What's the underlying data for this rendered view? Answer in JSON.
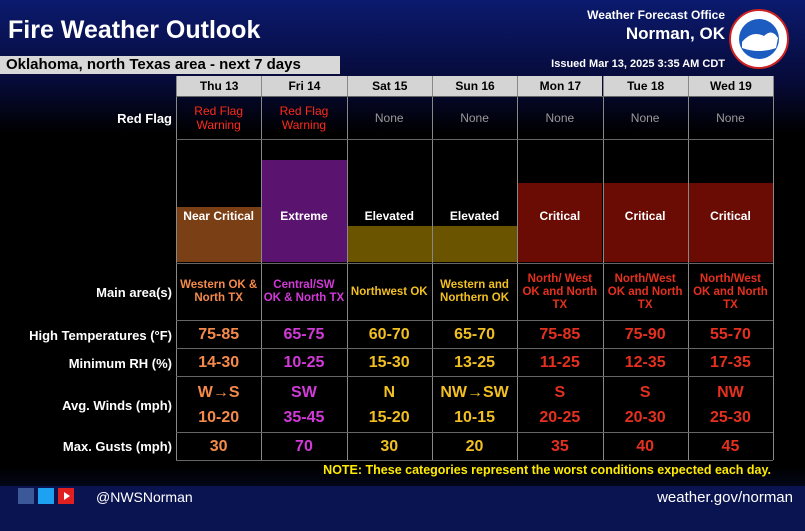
{
  "header": {
    "title": "Fire Weather Outlook",
    "subtitle": "Oklahoma, north Texas area - next 7 days",
    "office": "Weather Forecast Office",
    "office_location": "Norman, OK",
    "issued": "Issued Mar 13, 2025 3:35 AM CDT"
  },
  "table": {
    "row_labels": {
      "red_flag": "Red Flag",
      "main_area": "Main area(s)",
      "high_temps": "High Temperatures (°F)",
      "min_rh": "Minimum RH (%)",
      "winds": "Avg. Winds (mph)",
      "gusts": "Max. Gusts (mph)"
    },
    "days": [
      {
        "day": "Thu 13",
        "red_flag": "Red Flag Warning",
        "category": "Near Critical",
        "main_area": "Western OK & North TX",
        "high_temps": "75-85",
        "min_rh": "14-30",
        "wind_dir": "W→S",
        "wind_speed": "10-20",
        "gusts": 30,
        "text_color": "#f58a4a",
        "bar_color": "#7a3f14",
        "red_flag_color": "#ff2a1a"
      },
      {
        "day": "Fri 14",
        "red_flag": "Red Flag Warning",
        "category": "Extreme",
        "main_area": "Central/SW OK & North TX",
        "high_temps": "65-75",
        "min_rh": "10-25",
        "wind_dir": "SW",
        "wind_speed": "35-45",
        "gusts": 70,
        "text_color": "#d23ad8",
        "bar_color": "#5a1470",
        "red_flag_color": "#ff2a1a"
      },
      {
        "day": "Sat 15",
        "red_flag": "None",
        "category": "Elevated",
        "main_area": "Northwest OK",
        "high_temps": "60-70",
        "min_rh": "15-30",
        "wind_dir": "N",
        "wind_speed": "15-20",
        "gusts": 30,
        "text_color": "#f2bf22",
        "bar_color": "#6b5400",
        "red_flag_color": "#9a9a9a"
      },
      {
        "day": "Sun 16",
        "red_flag": "None",
        "category": "Elevated",
        "main_area": "Western and Northern OK",
        "high_temps": "65-70",
        "min_rh": "13-25",
        "wind_dir": "NW→SW",
        "wind_speed": "10-15",
        "gusts": 20,
        "text_color": "#f2bf22",
        "bar_color": "#6b5400",
        "red_flag_color": "#9a9a9a"
      },
      {
        "day": "Mon 17",
        "red_flag": "None",
        "category": "Critical",
        "main_area": "North/ West OK and North TX",
        "high_temps": "75-85",
        "min_rh": "11-25",
        "wind_dir": "S",
        "wind_speed": "20-25",
        "gusts": 35,
        "text_color": "#e5301f",
        "bar_color": "#6a0b04",
        "red_flag_color": "#9a9a9a"
      },
      {
        "day": "Tue 18",
        "red_flag": "None",
        "category": "Critical",
        "main_area": "North/West OK and North TX",
        "high_temps": "75-90",
        "min_rh": "12-35",
        "wind_dir": "S",
        "wind_speed": "20-30",
        "gusts": 40,
        "text_color": "#e5301f",
        "bar_color": "#6a0b04",
        "red_flag_color": "#9a9a9a"
      },
      {
        "day": "Wed 19",
        "red_flag": "None",
        "category": "Critical",
        "main_area": "North/West OK and North TX",
        "high_temps": "55-70",
        "min_rh": "17-35",
        "wind_dir": "NW",
        "wind_speed": "25-30",
        "gusts": 45,
        "text_color": "#e5301f",
        "bar_color": "#6a0b04",
        "red_flag_color": "#9a9a9a"
      }
    ]
  },
  "note": "NOTE: These categories represent the worst conditions expected each day.",
  "footer": {
    "handle": "@NWSNorman",
    "url": "weather.gov/norman"
  }
}
